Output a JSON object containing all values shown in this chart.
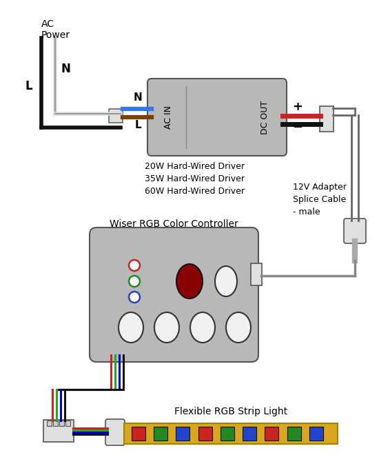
{
  "bg_color": "#ffffff",
  "ac_power_label": "AC\nPower",
  "L_label": "L",
  "N_label": "N",
  "driver_label": "AC IN",
  "dc_out_label": "DC OUT",
  "driver_text": "20W Hard-Wired Driver\n35W Hard-Wired Driver\n60W Hard-Wired Driver",
  "adapter_label": "12V Adapter\nSplice Cable\n- male",
  "controller_label": "Wiser RGB Color Controller",
  "strip_label": "Flexible RGB Strip Light",
  "box_color": "#b8b8b8",
  "wire_black": "#111111",
  "wire_white": "#dddddd",
  "wire_blue": "#3377ee",
  "wire_brown": "#7B3F00",
  "wire_red": "#cc2222",
  "wire_green": "#22aa22",
  "wire_dark_blue": "#0000cc",
  "connector_color": "#e0e0e0",
  "strip_color": "#DAA520",
  "led_red": "#cc2222",
  "led_green": "#228822",
  "led_blue": "#2244cc",
  "btn_dark_red": "#8B0000",
  "btn_white": "#f0f0f0"
}
